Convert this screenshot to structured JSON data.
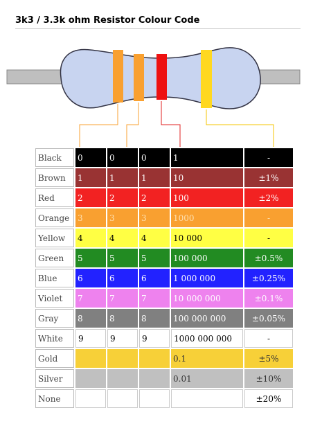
{
  "title": "3k3 / 3.3k ohm Resistor Colour Code",
  "table": {
    "rows": [
      {
        "name": "Black",
        "color": "#000000",
        "text_color": "#ffffff",
        "cells": [
          "0",
          "0",
          "0",
          "1",
          "-"
        ]
      },
      {
        "name": "Brown",
        "color": "#993333",
        "text_color": "#ffffff",
        "cells": [
          "1",
          "1",
          "1",
          "10",
          "±1%"
        ]
      },
      {
        "name": "Red",
        "color": "#f22222",
        "text_color": "#ffffff",
        "cells": [
          "2",
          "2",
          "2",
          "100",
          "±2%"
        ]
      },
      {
        "name": "Orange",
        "color": "#f9a030",
        "text_color": "#fde0b0",
        "cells": [
          "3",
          "3",
          "3",
          "1000",
          "-"
        ]
      },
      {
        "name": "Yellow",
        "color": "#ffff44",
        "text_color": "#000000",
        "cells": [
          "4",
          "4",
          "4",
          "10 000",
          "-"
        ]
      },
      {
        "name": "Green",
        "color": "#228b22",
        "text_color": "#ffffff",
        "cells": [
          "5",
          "5",
          "5",
          "100 000",
          "±0.5%"
        ]
      },
      {
        "name": "Blue",
        "color": "#2222ff",
        "text_color": "#ffffff",
        "cells": [
          "6",
          "6",
          "6",
          "1 000 000",
          "±0.25%"
        ]
      },
      {
        "name": "Violet",
        "color": "#ee82ee",
        "text_color": "#ffffff",
        "cells": [
          "7",
          "7",
          "7",
          "10 000 000",
          "±0.1%"
        ]
      },
      {
        "name": "Gray",
        "color": "#808080",
        "text_color": "#ffffff",
        "cells": [
          "8",
          "8",
          "8",
          "100 000 000",
          "±0.05%"
        ]
      },
      {
        "name": "White",
        "color": "#ffffff",
        "text_color": "#000000",
        "cells": [
          "9",
          "9",
          "9",
          "1000 000 000",
          "-"
        ]
      },
      {
        "name": "Gold",
        "color": "#f7d038",
        "text_color": "#333333",
        "cells": [
          null,
          null,
          null,
          "0.1",
          "±5%"
        ]
      },
      {
        "name": "Silver",
        "color": "#c0c0c0",
        "text_color": "#333333",
        "cells": [
          null,
          null,
          null,
          "0.01",
          "±10%"
        ]
      },
      {
        "name": "None",
        "color": "#ffffff",
        "text_color": "#000000",
        "cells": [
          null,
          null,
          null,
          null,
          "±20%"
        ]
      }
    ]
  }
}
